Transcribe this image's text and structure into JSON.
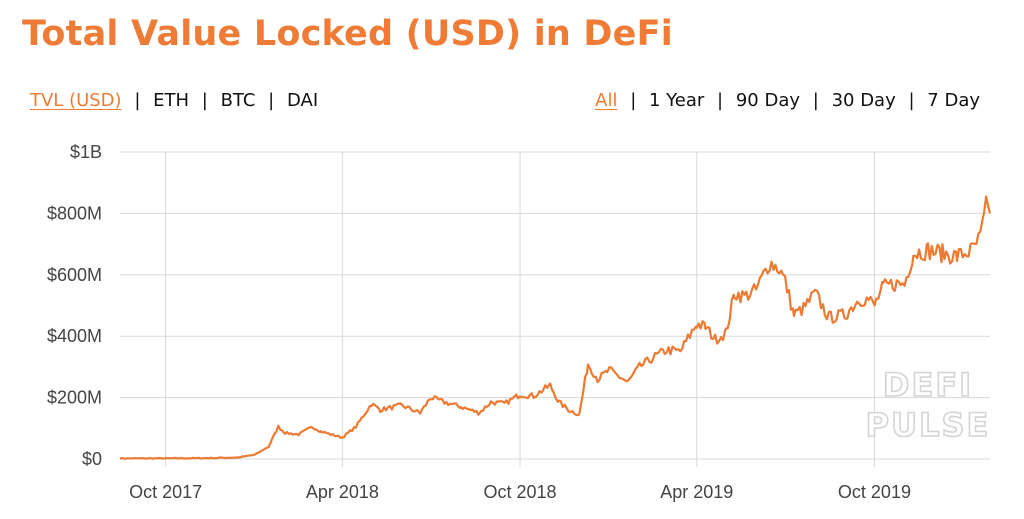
{
  "title": "Total Value Locked (USD) in DeFi",
  "metric_options": [
    {
      "label": "TVL (USD)",
      "active": true
    },
    {
      "label": "ETH",
      "active": false
    },
    {
      "label": "BTC",
      "active": false
    },
    {
      "label": "DAI",
      "active": false
    }
  ],
  "range_options": [
    {
      "label": "All",
      "active": true
    },
    {
      "label": "1 Year",
      "active": false
    },
    {
      "label": "90 Day",
      "active": false
    },
    {
      "label": "30 Day",
      "active": false
    },
    {
      "label": "7 Day",
      "active": false
    }
  ],
  "separator": "|",
  "watermark": [
    "DEFI",
    "PULSE"
  ],
  "colors": {
    "accent": "#ee7c36",
    "line": "#ec7a33",
    "grid": "#d9d9d9"
  },
  "chart_data": {
    "type": "line",
    "title": "",
    "xlabel": "",
    "ylabel": "",
    "ylim": [
      0,
      1000
    ],
    "xlim": [
      "2017-08-15",
      "2020-01-28"
    ],
    "x_ticks": [
      {
        "date": "2017-10-01",
        "label": "Oct 2017"
      },
      {
        "date": "2018-04-01",
        "label": "Apr 2018"
      },
      {
        "date": "2018-10-01",
        "label": "Oct 2018"
      },
      {
        "date": "2019-04-01",
        "label": "Apr 2019"
      },
      {
        "date": "2019-10-01",
        "label": "Oct 2019"
      }
    ],
    "y_ticks": [
      {
        "value": 0,
        "label": "$0"
      },
      {
        "value": 200,
        "label": "$200M"
      },
      {
        "value": 400,
        "label": "$400M"
      },
      {
        "value": 600,
        "label": "$600M"
      },
      {
        "value": 800,
        "label": "$800M"
      },
      {
        "value": 1000,
        "label": "$1B"
      }
    ],
    "grid": true,
    "legend": "none",
    "series": [
      {
        "values_unit": "USD millions",
        "points": [
          [
            "2017-08-15",
            2
          ],
          [
            "2017-10-01",
            2
          ],
          [
            "2017-11-15",
            3
          ],
          [
            "2017-12-15",
            5
          ],
          [
            "2018-01-01",
            14
          ],
          [
            "2018-01-15",
            40
          ],
          [
            "2018-01-25",
            105
          ],
          [
            "2018-02-01",
            85
          ],
          [
            "2018-02-15",
            80
          ],
          [
            "2018-03-01",
            105
          ],
          [
            "2018-03-10",
            90
          ],
          [
            "2018-03-20",
            80
          ],
          [
            "2018-04-01",
            70
          ],
          [
            "2018-04-15",
            105
          ],
          [
            "2018-05-01",
            180
          ],
          [
            "2018-05-10",
            160
          ],
          [
            "2018-06-01",
            175
          ],
          [
            "2018-06-20",
            150
          ],
          [
            "2018-07-01",
            200
          ],
          [
            "2018-07-15",
            185
          ],
          [
            "2018-08-01",
            170
          ],
          [
            "2018-08-20",
            150
          ],
          [
            "2018-09-01",
            185
          ],
          [
            "2018-09-15",
            180
          ],
          [
            "2018-10-01",
            210
          ],
          [
            "2018-10-15",
            205
          ],
          [
            "2018-11-01",
            240
          ],
          [
            "2018-11-10",
            185
          ],
          [
            "2018-11-20",
            160
          ],
          [
            "2018-12-01",
            145
          ],
          [
            "2018-12-10",
            310
          ],
          [
            "2018-12-20",
            260
          ],
          [
            "2019-01-01",
            290
          ],
          [
            "2019-01-20",
            250
          ],
          [
            "2019-02-01",
            300
          ],
          [
            "2019-02-15",
            330
          ],
          [
            "2019-03-01",
            355
          ],
          [
            "2019-03-15",
            350
          ],
          [
            "2019-04-01",
            440
          ],
          [
            "2019-04-10",
            430
          ],
          [
            "2019-04-20",
            390
          ],
          [
            "2019-05-01",
            410
          ],
          [
            "2019-05-10",
            540
          ],
          [
            "2019-05-20",
            530
          ],
          [
            "2019-06-01",
            550
          ],
          [
            "2019-06-15",
            640
          ],
          [
            "2019-06-25",
            620
          ],
          [
            "2019-07-01",
            580
          ],
          [
            "2019-07-10",
            470
          ],
          [
            "2019-07-20",
            490
          ],
          [
            "2019-08-01",
            540
          ],
          [
            "2019-08-15",
            460
          ],
          [
            "2019-09-01",
            470
          ],
          [
            "2019-09-15",
            520
          ],
          [
            "2019-09-25",
            520
          ],
          [
            "2019-10-01",
            500
          ],
          [
            "2019-10-10",
            560
          ],
          [
            "2019-10-20",
            570
          ],
          [
            "2019-11-01",
            570
          ],
          [
            "2019-11-10",
            670
          ],
          [
            "2019-11-25",
            680
          ],
          [
            "2019-12-10",
            670
          ],
          [
            "2019-12-25",
            660
          ],
          [
            "2020-01-10",
            680
          ],
          [
            "2020-01-18",
            720
          ],
          [
            "2020-01-24",
            820
          ],
          [
            "2020-01-28",
            800
          ]
        ]
      }
    ]
  }
}
